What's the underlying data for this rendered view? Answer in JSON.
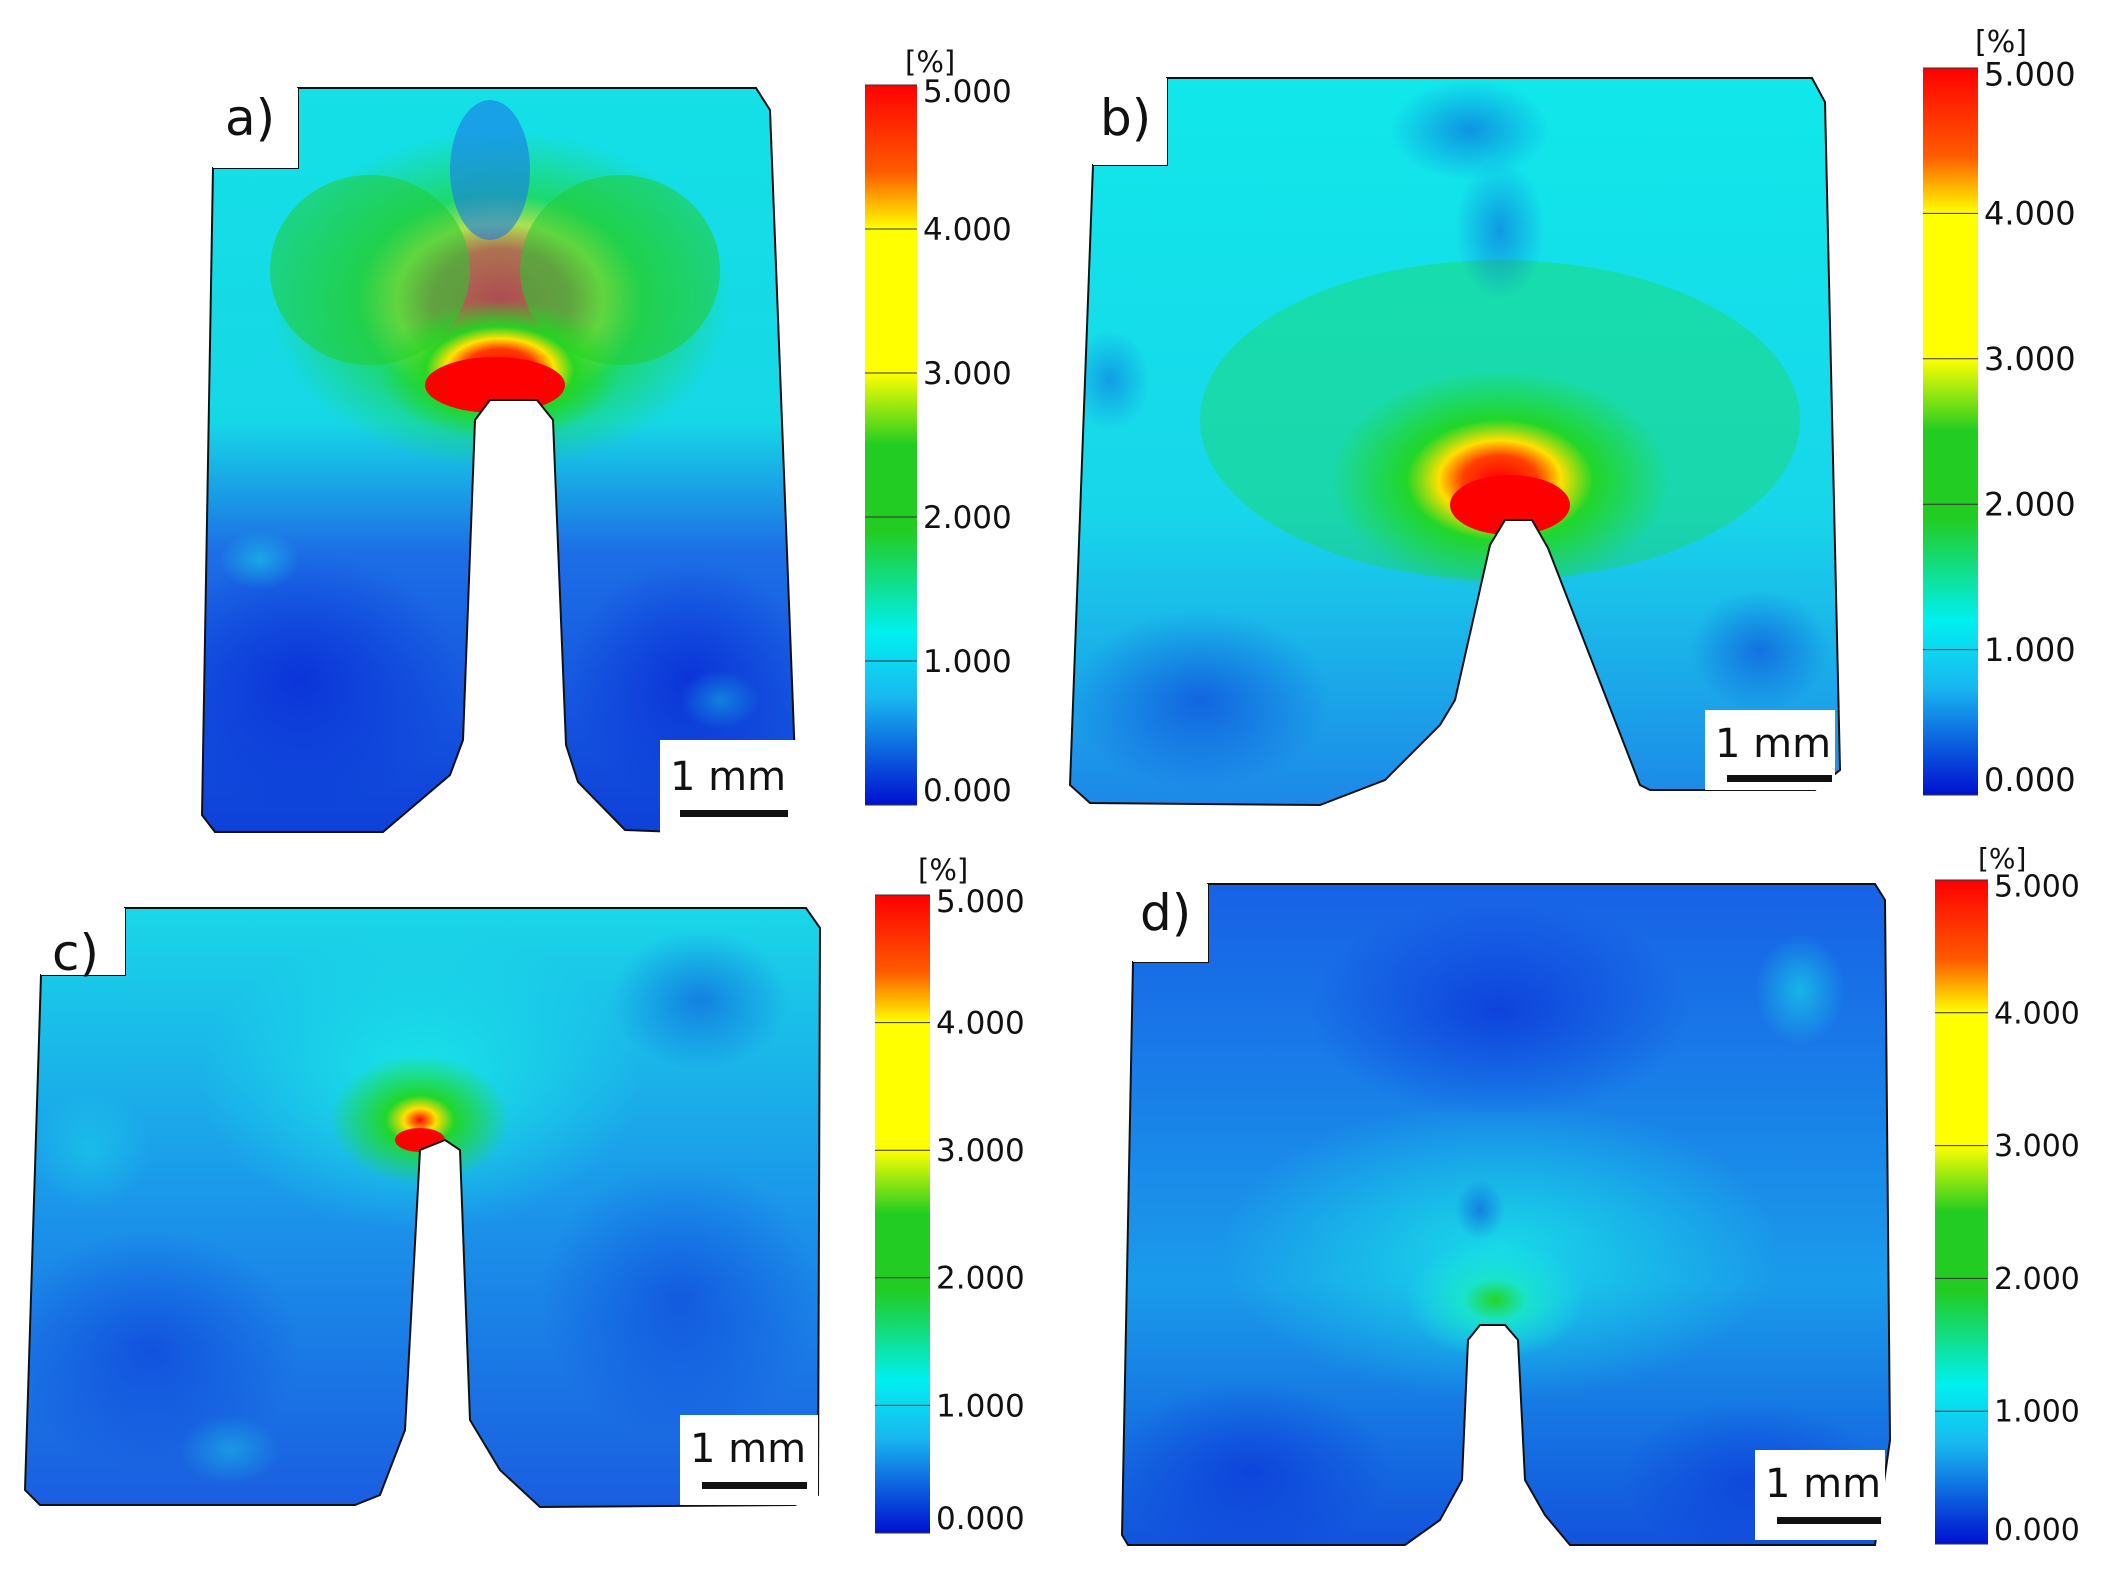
{
  "panels": [
    {
      "id": "a",
      "label": "a)",
      "scale_bar": "1 mm"
    },
    {
      "id": "b",
      "label": "b)",
      "scale_bar": "1 mm"
    },
    {
      "id": "c",
      "label": "c)",
      "scale_bar": "1 mm"
    },
    {
      "id": "d",
      "label": "d)",
      "scale_bar": "1 mm"
    }
  ],
  "colorbar": {
    "unit": "[%]",
    "ticks": [
      "5.000",
      "4.000",
      "3.000",
      "2.000",
      "1.000",
      "0.000"
    ],
    "colors": [
      "#ff0000",
      "#ff8c00",
      "#ffff00",
      "#00d000",
      "#00f0f0",
      "#0050ff",
      "#0010d0"
    ]
  },
  "palette": {
    "low": "#0a3fe0",
    "mid_low": "#1a8cf0",
    "mid": "#19e6e6",
    "mid_high": "#22cc22",
    "high": "#ffe800",
    "peak": "#ff0000"
  }
}
